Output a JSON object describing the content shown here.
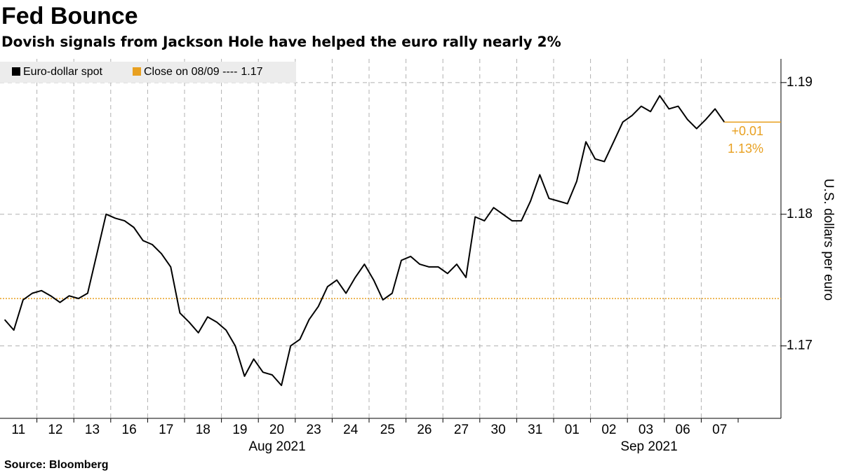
{
  "chart_data": {
    "type": "line",
    "title": "Fed Bounce",
    "subtitle": "Dovish signals from Jackson Hole have helped the euro rally nearly 2%",
    "source": "Source: Bloomberg",
    "y_axis_label": "U.S. dollars per euro",
    "x_group_labels": [
      "Aug 2021",
      "Sep 2021"
    ],
    "categories": [
      "11",
      null,
      null,
      null,
      "12",
      null,
      null,
      null,
      "13",
      null,
      null,
      null,
      "16",
      null,
      null,
      null,
      "17",
      null,
      null,
      null,
      "18",
      null,
      null,
      null,
      "19",
      null,
      null,
      null,
      "20",
      null,
      null,
      null,
      "23",
      null,
      null,
      null,
      "24",
      null,
      null,
      null,
      "25",
      null,
      null,
      null,
      "26",
      null,
      null,
      null,
      "27",
      null,
      null,
      null,
      "30",
      null,
      null,
      null,
      "31",
      null,
      null,
      null,
      "01",
      null,
      null,
      null,
      "02",
      null,
      null,
      null,
      "03",
      null,
      null,
      null,
      "06",
      null,
      null,
      null,
      "07",
      null,
      null
    ],
    "series": [
      {
        "name": "Euro-dollar spot",
        "color": "#000000",
        "values": [
          1.172,
          1.1712,
          1.1735,
          1.174,
          1.1742,
          1.1738,
          1.1733,
          1.1738,
          1.1736,
          1.174,
          1.177,
          1.18,
          1.1797,
          1.1795,
          1.179,
          1.178,
          1.1777,
          1.177,
          1.176,
          1.1725,
          1.1718,
          1.171,
          1.1722,
          1.1718,
          1.1712,
          1.17,
          1.1677,
          1.169,
          1.168,
          1.1678,
          1.167,
          1.17,
          1.1705,
          1.172,
          1.173,
          1.1745,
          1.175,
          1.174,
          1.1752,
          1.1762,
          1.175,
          1.1735,
          1.174,
          1.1765,
          1.1768,
          1.1762,
          1.176,
          1.176,
          1.1755,
          1.1762,
          1.1752,
          1.1798,
          1.1795,
          1.1805,
          1.18,
          1.1795,
          1.1795,
          1.181,
          1.183,
          1.1812,
          1.181,
          1.1808,
          1.1825,
          1.1855,
          1.1842,
          1.184,
          1.1855,
          1.187,
          1.1875,
          1.1882,
          1.1878,
          1.189,
          1.188,
          1.1882,
          1.1872,
          1.1865,
          1.1872,
          1.188,
          1.187
        ]
      }
    ],
    "reference": {
      "name": "Close on 08/09 ----",
      "value": 1.1736,
      "value_label": "1.17",
      "color": "#e8a020"
    },
    "annotations": [
      "+0.01",
      "1.13%"
    ],
    "ylim": [
      1.1645,
      1.1918
    ],
    "yticks": [
      1.17,
      1.18,
      1.19
    ],
    "grid": true,
    "legend": "top-left"
  }
}
